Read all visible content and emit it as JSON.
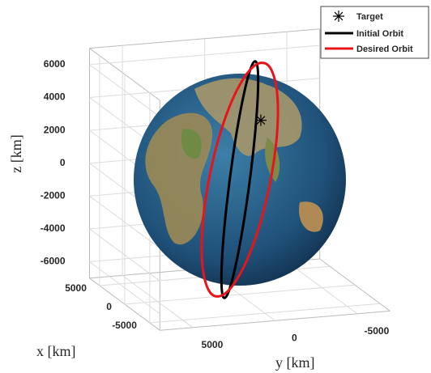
{
  "chart_data": {
    "type": "orbit3d",
    "xlabel": "x [km]",
    "ylabel": "y [km]",
    "zlabel": "z [km]",
    "xlim": [
      -7000,
      7000
    ],
    "ylim": [
      -7000,
      7000
    ],
    "zlim": [
      -7000,
      7000
    ],
    "xticks": [
      -5000,
      0,
      5000
    ],
    "yticks": [
      -5000,
      0,
      5000
    ],
    "zticks": [
      -6000,
      -4000,
      -2000,
      0,
      2000,
      4000,
      6000
    ],
    "grid": true,
    "legend": "upper right",
    "target": {
      "name": "Target",
      "color": "#000000",
      "x": 4000,
      "y": -2500,
      "z": 2500
    },
    "series": [
      {
        "name": "Initial Orbit",
        "color": "#000000",
        "x": [
          6790,
          5880,
          3395,
          0,
          -3395,
          -5880,
          -6790,
          -5880,
          -3395,
          0,
          3395,
          5880
        ],
        "y": [
          -1694,
          -1992,
          -1756,
          -1050,
          -62,
          942,
          1694,
          1992,
          1756,
          1050,
          62,
          -942
        ],
        "z": [
          0,
          3465,
          6002,
          6930,
          6002,
          3465,
          0,
          -3465,
          -6002,
          -6930,
          -6002,
          -3465
        ]
      },
      {
        "name": "Desired Orbit",
        "color": "#e8141a",
        "x": [
          6972,
          6038,
          3486,
          0,
          -3486,
          -6038,
          -6972,
          -6038,
          -3486,
          0,
          3486,
          6038
        ],
        "y": [
          -609,
          -1402,
          -1821,
          -1750,
          -1211,
          -348,
          609,
          1402,
          1821,
          1750,
          1211,
          348
        ],
        "z": [
          0,
          3395,
          5880,
          6790,
          5880,
          3395,
          0,
          -3395,
          -5880,
          -6790,
          -5880,
          -3395
        ]
      }
    ]
  }
}
